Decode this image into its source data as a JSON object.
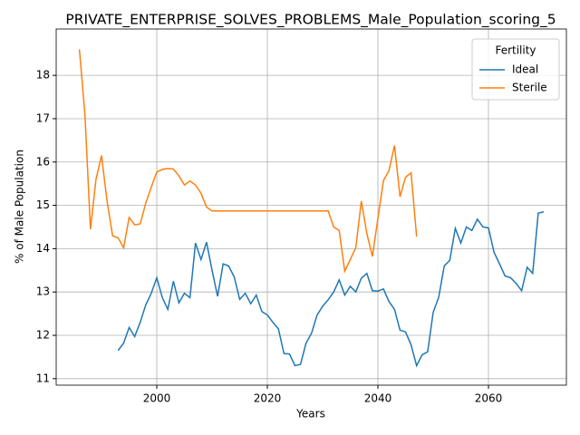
{
  "chart_data": {
    "type": "line",
    "title": "PRIVATE_ENTERPRISE_SOLVES_PROBLEMS_Male_Population_scoring_5",
    "x_label": "Years",
    "y_label": "% of Male Population",
    "x": [
      1986,
      1987,
      1988,
      1989,
      1990,
      1991,
      1992,
      1993,
      1994,
      1995,
      1996,
      1997,
      1998,
      1999,
      2000,
      2001,
      2002,
      2003,
      2004,
      2005,
      2006,
      2007,
      2008,
      2009,
      2010,
      2011,
      2012,
      2013,
      2014,
      2015,
      2016,
      2017,
      2018,
      2019,
      2020,
      2021,
      2022,
      2023,
      2024,
      2025,
      2026,
      2027,
      2028,
      2029,
      2030,
      2031,
      2032,
      2033,
      2034,
      2035,
      2036,
      2037,
      2038,
      2039,
      2040,
      2041,
      2042,
      2043,
      2044,
      2045,
      2046,
      2047,
      2048,
      2049,
      2050,
      2051,
      2052,
      2053,
      2054,
      2055,
      2056,
      2057,
      2058,
      2059,
      2060,
      2061,
      2062,
      2063,
      2064,
      2065,
      2066,
      2067,
      2068,
      2069,
      2070
    ],
    "series": [
      {
        "name": "Ideal",
        "color": "#1f77b4",
        "values": [
          null,
          null,
          null,
          null,
          null,
          null,
          null,
          11.65,
          11.82,
          12.18,
          11.97,
          12.3,
          12.7,
          12.97,
          13.33,
          12.87,
          12.6,
          13.25,
          12.75,
          12.97,
          12.87,
          14.13,
          13.75,
          14.15,
          13.5,
          12.9,
          13.65,
          13.6,
          13.35,
          12.83,
          12.97,
          12.73,
          12.93,
          12.55,
          12.47,
          12.3,
          12.15,
          11.58,
          11.57,
          11.3,
          11.33,
          11.82,
          12.05,
          12.47,
          12.67,
          12.82,
          13.0,
          13.28,
          12.93,
          13.13,
          13.0,
          13.32,
          13.43,
          13.03,
          13.02,
          13.07,
          12.78,
          12.6,
          12.12,
          12.08,
          11.78,
          11.3,
          11.55,
          11.62,
          12.53,
          12.88,
          13.6,
          13.73,
          14.47,
          14.13,
          14.5,
          14.42,
          14.68,
          14.5,
          14.48,
          13.92,
          13.65,
          13.37,
          13.33,
          13.2,
          13.03,
          13.57,
          13.43,
          14.82,
          14.85
        ]
      },
      {
        "name": "Sterile",
        "color": "#ff7f0e",
        "values": [
          18.6,
          17.1,
          14.45,
          15.6,
          16.15,
          15.1,
          14.3,
          14.25,
          14.02,
          14.72,
          14.55,
          14.57,
          15.05,
          15.42,
          15.77,
          15.83,
          15.85,
          15.84,
          15.68,
          15.47,
          15.56,
          15.47,
          15.28,
          14.96,
          14.87,
          14.87,
          14.87,
          14.87,
          14.87,
          14.87,
          14.87,
          14.87,
          14.87,
          14.87,
          14.87,
          14.87,
          14.87,
          14.87,
          14.87,
          14.87,
          14.87,
          14.87,
          14.87,
          14.87,
          14.87,
          14.87,
          14.5,
          14.42,
          13.48,
          13.75,
          14.02,
          15.1,
          14.35,
          13.82,
          14.7,
          15.57,
          15.8,
          16.38,
          15.2,
          15.65,
          15.75,
          14.28,
          null,
          null,
          null,
          null,
          null,
          null,
          null,
          null,
          null,
          null,
          null,
          null,
          null,
          null,
          null,
          null,
          null,
          null,
          null,
          null,
          null,
          null,
          null
        ]
      }
    ],
    "xlim": [
      1981.8,
      2074.1
    ],
    "xticks": [
      2000,
      2020,
      2040,
      2060
    ],
    "ylim": [
      10.85,
      19.07
    ],
    "yticks": [
      11,
      12,
      13,
      14,
      15,
      16,
      17,
      18
    ],
    "grid": true,
    "legend_title": "Fertility",
    "legend_position": "upper right"
  }
}
